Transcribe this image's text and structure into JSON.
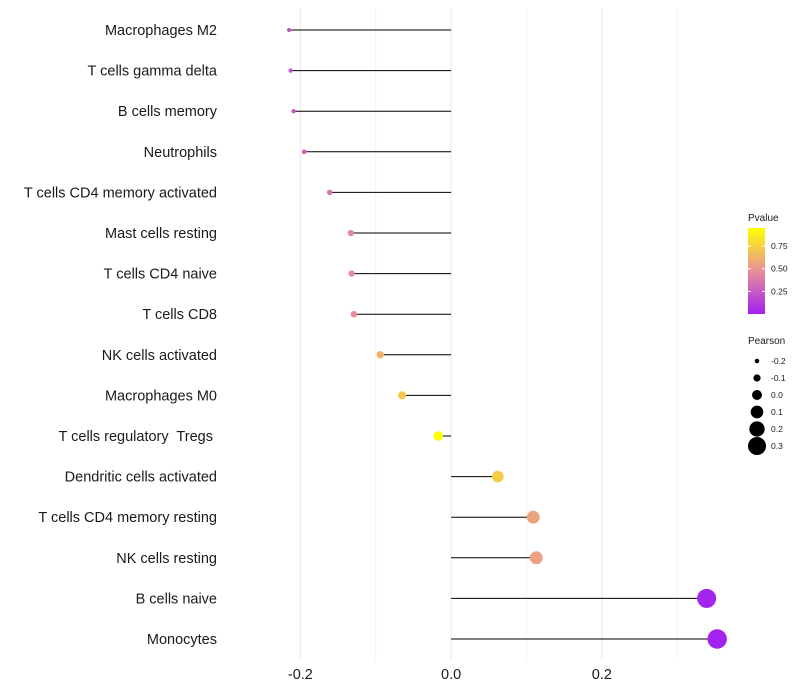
{
  "chart_data": {
    "type": "lollipop",
    "title": "",
    "xlabel": "",
    "ylabel": "",
    "xlim": [
      -0.3,
      0.37
    ],
    "x_ticks": [
      {
        "value": -0.2,
        "label": "-0.2"
      },
      {
        "value": 0.0,
        "label": "0.0"
      },
      {
        "value": 0.2,
        "label": "0.2"
      }
    ],
    "minor_gridlines": [
      -0.1,
      0.1,
      0.3
    ],
    "grid": true,
    "color_scale": {
      "low_color": "#a020f0",
      "mid_color": "#e8909a",
      "high_color": "#ffff00"
    },
    "points": [
      {
        "name": "Macrophages M2",
        "pearson": -0.215,
        "pvalue": 0.22
      },
      {
        "name": "T cells gamma delta",
        "pearson": -0.213,
        "pvalue": 0.23
      },
      {
        "name": "B cells memory",
        "pearson": -0.209,
        "pvalue": 0.24
      },
      {
        "name": "Neutrophils",
        "pearson": -0.195,
        "pvalue": 0.28
      },
      {
        "name": "T cells CD4 memory activated",
        "pearson": -0.161,
        "pvalue": 0.36
      },
      {
        "name": "Mast cells resting",
        "pearson": -0.133,
        "pvalue": 0.44
      },
      {
        "name": "T cells CD4 naive",
        "pearson": -0.132,
        "pvalue": 0.45
      },
      {
        "name": "T cells CD8",
        "pearson": -0.129,
        "pvalue": 0.46
      },
      {
        "name": "NK cells activated",
        "pearson": -0.094,
        "pvalue": 0.62
      },
      {
        "name": "Macrophages M0",
        "pearson": -0.065,
        "pvalue": 0.72
      },
      {
        "name": "T cells regulatory  Tregs ",
        "pearson": -0.017,
        "pvalue": 0.95
      },
      {
        "name": "Dendritic cells activated",
        "pearson": 0.062,
        "pvalue": 0.73
      },
      {
        "name": "T cells CD4 memory resting",
        "pearson": 0.109,
        "pvalue": 0.56
      },
      {
        "name": "NK cells resting",
        "pearson": 0.113,
        "pvalue": 0.55
      },
      {
        "name": "B cells naive",
        "pearson": 0.339,
        "pvalue": 0.02
      },
      {
        "name": "Monocytes",
        "pearson": 0.353,
        "pvalue": 0.01
      }
    ],
    "legend_pvalue": {
      "title": "Pvalue",
      "position": "right",
      "ticks": [
        {
          "value": 0.75,
          "label": "0.75"
        },
        {
          "value": 0.5,
          "label": "0.50"
        },
        {
          "value": 0.25,
          "label": "0.25"
        }
      ],
      "range": [
        0.0,
        0.95
      ]
    },
    "legend_pearson": {
      "title": "Pearson",
      "position": "right",
      "entries": [
        {
          "value": -0.2,
          "label": "-0.2"
        },
        {
          "value": -0.1,
          "label": "-0.1"
        },
        {
          "value": 0.0,
          "label": "0.0"
        },
        {
          "value": 0.1,
          "label": "0.1"
        },
        {
          "value": 0.2,
          "label": "0.2"
        },
        {
          "value": 0.3,
          "label": "0.3"
        }
      ]
    }
  }
}
